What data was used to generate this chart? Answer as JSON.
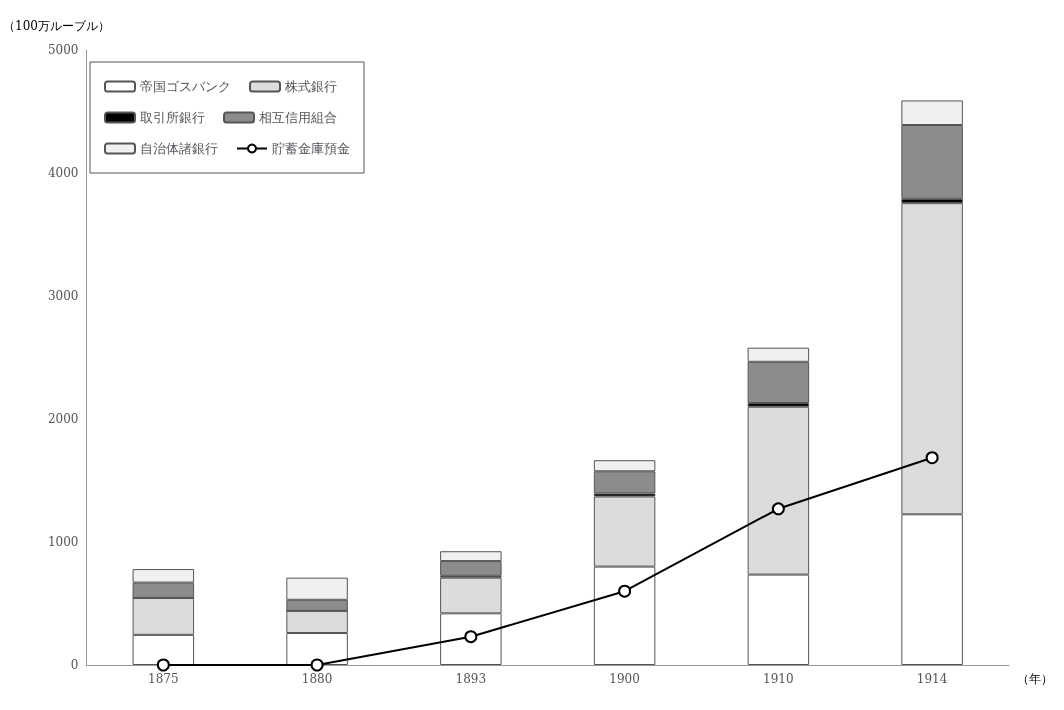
{
  "chart_data": {
    "type": "bar",
    "stacked": true,
    "ylabel": "（100万ルーブル）",
    "xlabel": "（年）",
    "categories": [
      "1875",
      "1880",
      "1893",
      "1900",
      "1910",
      "1914"
    ],
    "series": [
      {
        "name": "帝国ゴスバンク",
        "color": "#ffffff",
        "values": [
          245,
          260,
          420,
          800,
          735,
          1225
        ]
      },
      {
        "name": "株式銀行",
        "color": "#dcdcdc",
        "values": [
          300,
          180,
          290,
          570,
          1365,
          2530
        ]
      },
      {
        "name": "取引所銀行",
        "color": "#000000",
        "values": [
          0,
          0,
          15,
          25,
          30,
          35
        ]
      },
      {
        "name": "相互信用組合",
        "color": "#8c8c8c",
        "values": [
          125,
          90,
          120,
          180,
          335,
          600
        ]
      },
      {
        "name": "自治体諸銀行",
        "color": "#f0f0f0",
        "values": [
          110,
          180,
          80,
          90,
          115,
          200
        ]
      },
      {
        "name": "貯蓄金庫預金",
        "type": "line",
        "color": "#000000",
        "values": [
          0,
          0,
          230,
          600,
          1270,
          1685
        ]
      }
    ],
    "ylim": [
      0,
      5000
    ],
    "yticks": [
      0,
      1000,
      2000,
      3000,
      4000,
      5000
    ],
    "grid": false,
    "legend": "top left",
    "marker": "circle",
    "line_style": "solid"
  }
}
